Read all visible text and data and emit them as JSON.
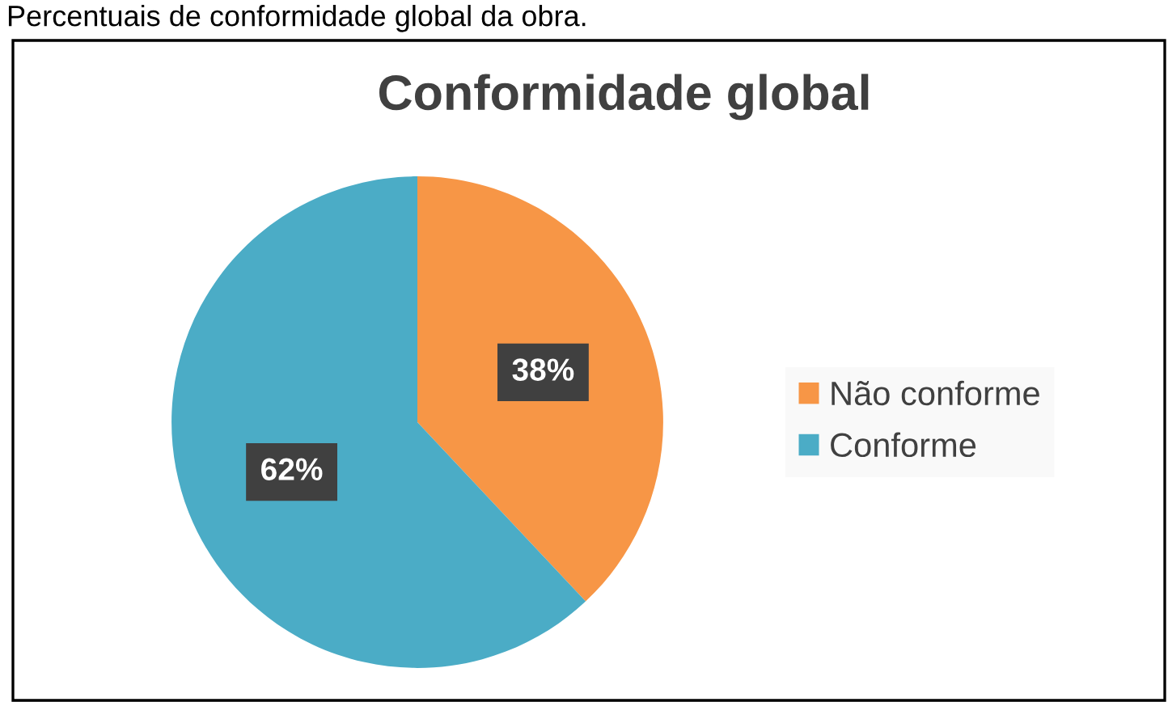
{
  "chart_data": {
    "type": "pie",
    "title": "Conformidade global",
    "annotations": [
      "Percentuais de conformidade global da obra."
    ],
    "categories": [
      "Não conforme",
      "Conforme"
    ],
    "values": [
      38,
      62
    ],
    "colors": [
      "#f79646",
      "#4bacc6"
    ],
    "value_labels": [
      "38%",
      "62%"
    ],
    "legend": "right"
  }
}
